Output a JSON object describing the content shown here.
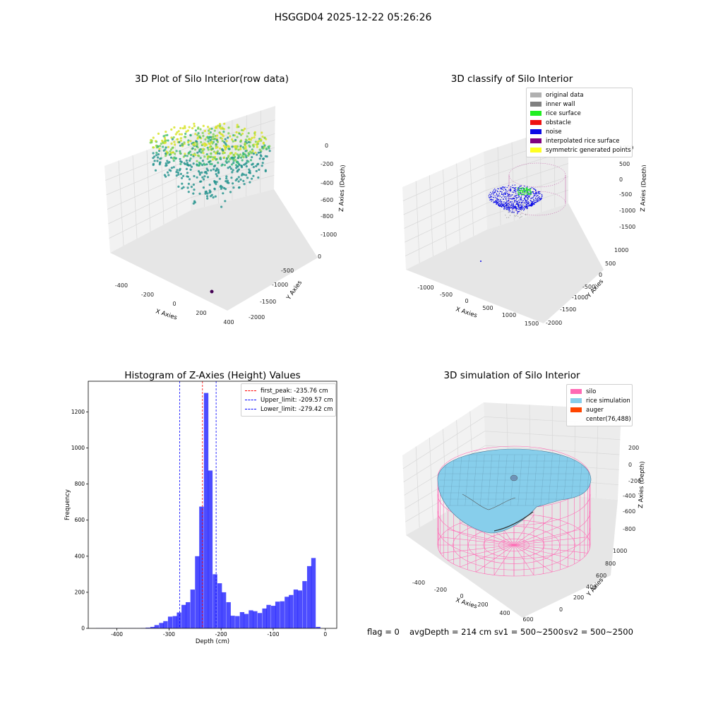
{
  "suptitle": "HSGGD04 2025-12-22 05:26:26",
  "chart_data": [
    {
      "type": "scatter",
      "title": "3D Plot of Silo Interior(row data)",
      "xlabel": "X Axies",
      "ylabel": "Y Axies",
      "zlabel": "Z Axies (Depth)",
      "x_ticks": [
        "-400",
        "-200",
        "0",
        "200",
        "400"
      ],
      "y_ticks": [
        "0",
        "-500",
        "-1000",
        "-1500",
        "-2000"
      ],
      "z_ticks": [
        "0",
        "-200",
        "-400",
        "-600",
        "-800",
        "-1000"
      ],
      "colormap": "viridis"
    },
    {
      "type": "scatter",
      "title": "3D classify of Silo Interior",
      "xlabel": "X Axies",
      "ylabel": "Y Axies",
      "zlabel": "Z Axies (Depth)",
      "x_ticks": [
        "-1000",
        "-500",
        "0",
        "500",
        "1000",
        "1500"
      ],
      "y_ticks": [
        "1000",
        "500",
        "0",
        "-500",
        "-1000",
        "-1500",
        "-2000"
      ],
      "z_ticks": [
        "500",
        "0",
        "-500",
        "-1000",
        "-1500"
      ],
      "z_extra_tick": "1000",
      "legend_position": "top-right",
      "legend": [
        {
          "label": "original data",
          "color": "#b0b0b0"
        },
        {
          "label": "inner wall",
          "color": "#808080"
        },
        {
          "label": "rice surface",
          "color": "#22ee22"
        },
        {
          "label": "obstacle",
          "color": "#ee1111"
        },
        {
          "label": "noise",
          "color": "#0a0ae6"
        },
        {
          "label": "interpolated rice surface",
          "color": "#800080"
        },
        {
          "label": "symmetric generated points",
          "color": "#ffff22"
        }
      ]
    },
    {
      "type": "bar",
      "title": "Histogram of Z-Axies (Height) Values",
      "xlabel": "Depth (cm)",
      "ylabel": "Frequency",
      "xlim": [
        -455,
        22
      ],
      "ylim": [
        0,
        1370
      ],
      "x_ticks": [
        -400,
        -300,
        -200,
        -100,
        0
      ],
      "y_ticks": [
        0,
        200,
        400,
        600,
        800,
        1000,
        1200
      ],
      "bin_width": 8.6,
      "bins": [
        {
          "x": -440,
          "y": 1
        },
        {
          "x": -431,
          "y": 1
        },
        {
          "x": -422,
          "y": 1
        },
        {
          "x": -414,
          "y": 1
        },
        {
          "x": -405,
          "y": 1
        },
        {
          "x": -397,
          "y": 1
        },
        {
          "x": -388,
          "y": 1
        },
        {
          "x": -379,
          "y": 1
        },
        {
          "x": -371,
          "y": 1
        },
        {
          "x": -362,
          "y": 1
        },
        {
          "x": -354,
          "y": 2
        },
        {
          "x": -345,
          "y": 4
        },
        {
          "x": -336,
          "y": 8
        },
        {
          "x": -328,
          "y": 18
        },
        {
          "x": -319,
          "y": 30
        },
        {
          "x": -311,
          "y": 40
        },
        {
          "x": -302,
          "y": 65
        },
        {
          "x": -293,
          "y": 68
        },
        {
          "x": -285,
          "y": 88
        },
        {
          "x": -276,
          "y": 130
        },
        {
          "x": -268,
          "y": 145
        },
        {
          "x": -259,
          "y": 215
        },
        {
          "x": -250,
          "y": 400
        },
        {
          "x": -242,
          "y": 675
        },
        {
          "x": -233,
          "y": 1305
        },
        {
          "x": -225,
          "y": 875
        },
        {
          "x": -216,
          "y": 300
        },
        {
          "x": -207,
          "y": 250
        },
        {
          "x": -199,
          "y": 200
        },
        {
          "x": -190,
          "y": 145
        },
        {
          "x": -182,
          "y": 70
        },
        {
          "x": -173,
          "y": 68
        },
        {
          "x": -164,
          "y": 90
        },
        {
          "x": -156,
          "y": 80
        },
        {
          "x": -147,
          "y": 100
        },
        {
          "x": -139,
          "y": 95
        },
        {
          "x": -130,
          "y": 85
        },
        {
          "x": -121,
          "y": 110
        },
        {
          "x": -113,
          "y": 130
        },
        {
          "x": -104,
          "y": 125
        },
        {
          "x": -96,
          "y": 148
        },
        {
          "x": -87,
          "y": 150
        },
        {
          "x": -78,
          "y": 175
        },
        {
          "x": -70,
          "y": 185
        },
        {
          "x": -61,
          "y": 215
        },
        {
          "x": -53,
          "y": 210
        },
        {
          "x": -44,
          "y": 262
        },
        {
          "x": -35,
          "y": 345
        },
        {
          "x": -27,
          "y": 390
        },
        {
          "x": -18,
          "y": 8
        }
      ],
      "bar_color": "#0000ff",
      "vlines": [
        {
          "label": "first_peak: -235.76 cm",
          "x": -235.76,
          "color": "#ff0000"
        },
        {
          "label": "Upper_limit: -209.57 cm",
          "x": -209.57,
          "color": "#0000ff"
        },
        {
          "label": "Lower_limit: -279.42 cm",
          "x": -279.42,
          "color": "#0000ff"
        }
      ],
      "legend_position": "top-right"
    },
    {
      "type": "surface",
      "title": "3D simulation of Silo Interior",
      "xlabel": "X Axies",
      "ylabel": "Y Axies",
      "zlabel": "Z Axies (Depth)",
      "x_ticks": [
        "-400",
        "-200",
        "0",
        "200",
        "400",
        "600"
      ],
      "y_ticks": [
        "0",
        "200",
        "400",
        "600",
        "800",
        "1000"
      ],
      "z_ticks": [
        "200",
        "0",
        "-200",
        "-400",
        "-600",
        "-800"
      ],
      "legend_position": "top-right",
      "legend": [
        {
          "label": "silo",
          "color": "#ff69b4"
        },
        {
          "label": "rice simulation",
          "color": "#87ceeb"
        },
        {
          "label": "auger",
          "color": "#ff4500"
        },
        {
          "label": "center(76,488)",
          "color": ""
        }
      ]
    }
  ],
  "footer": {
    "flag": "flag = 0",
    "avg": "avgDepth = 214 cm",
    "sv1": "sv1 = 500~2500",
    "sv2": "sv2 = 500~2500"
  }
}
